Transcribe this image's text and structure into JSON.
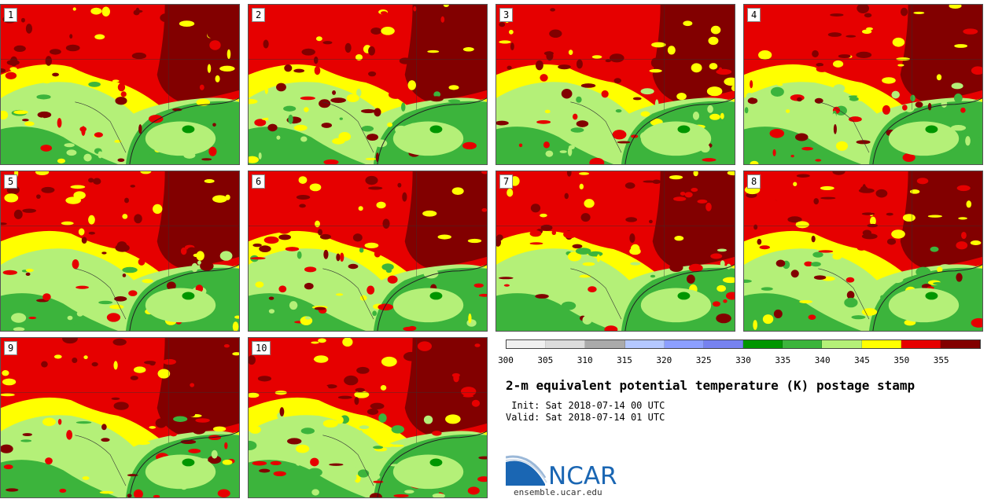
{
  "panels": [
    {
      "label": "1"
    },
    {
      "label": "2"
    },
    {
      "label": "3"
    },
    {
      "label": "4"
    },
    {
      "label": "5"
    },
    {
      "label": "6"
    },
    {
      "label": "7"
    },
    {
      "label": "8"
    },
    {
      "label": "9"
    },
    {
      "label": "10"
    }
  ],
  "colorbar": {
    "ticks": [
      "300",
      "305",
      "310",
      "315",
      "320",
      "325",
      "330",
      "335",
      "340",
      "345",
      "350",
      "355"
    ],
    "colors": [
      "#f0f0f0",
      "#dcdcdc",
      "#aaaaaa",
      "#b4c8ff",
      "#8c9fff",
      "#7682f0",
      "#009600",
      "#3cb43c",
      "#b4f078",
      "#ffff00",
      "#e60000",
      "#820000"
    ]
  },
  "title": "2-m equivalent potential temperature (K) postage stamp",
  "init_line": " Init: Sat 2018-07-14 00 UTC",
  "valid_line": "Valid: Sat 2018-07-14 01 UTC",
  "logo": {
    "text": "NCAR",
    "site": "ensemble.ucar.edu",
    "brand_color": "#1a66b3"
  }
}
